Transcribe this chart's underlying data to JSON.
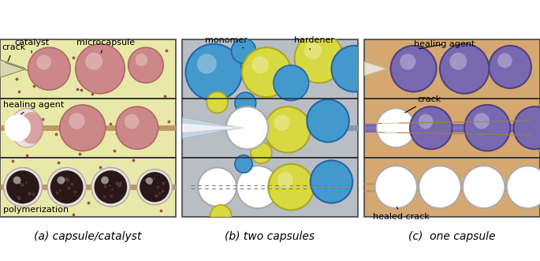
{
  "fig_width": 6.85,
  "fig_height": 3.31,
  "dpi": 100,
  "panel_a": {
    "bg_color": "#e8e8a8",
    "dot_color": "#8b3a3a",
    "microcapsule_color": "#cc8888",
    "microcapsule_edge": "#b06868",
    "microcapsule_highlight": "#ddaaaa",
    "fiber_color": "#c09868",
    "fiber_lw": 5,
    "polymerized_color": "#2a1818",
    "polymerized_edge": "#1a0808",
    "polymerized_spot": "#5a3535",
    "healing_half_color": "#f0e0e0",
    "healing_half_edge": "#ccaaaa",
    "crack_wedge_color": "#d8d8b0",
    "crack_wedge_edge": "#888866",
    "crack_line_color": "#888866",
    "labels": {
      "catalyst": "catalyst",
      "microcapsule": "microcapsule",
      "crack": "crack",
      "healing_agent": "healing agent",
      "polymerization": "polymerization"
    },
    "caption": "(a) capsule/catalyst"
  },
  "panel_b": {
    "bg_color": "#b8bec4",
    "monomer_color": "#4499cc",
    "monomer_edge": "#2266aa",
    "hardener_color": "#d8d840",
    "hardener_edge": "#aaa820",
    "white_color": "#ffffff",
    "white_edge": "#aaaaaa",
    "fiber_color": "#8899aa",
    "fiber_lw": 5,
    "needle_color": "#c8d8e8",
    "needle_edge": "#9aaabb",
    "crack_line_color": "#777777",
    "labels": {
      "monomer": "monomer",
      "hardener": "hardener"
    },
    "caption": "(b) two capsules"
  },
  "panel_c": {
    "bg_color": "#d4a870",
    "capsule_color": "#7868b0",
    "capsule_edge": "#504080",
    "capsule_highlight": "#9888cc",
    "white_color": "#ffffff",
    "white_edge": "#b0a8a8",
    "fiber_color": "#b09060",
    "fiber_lw": 8,
    "crack_line_color": "#a08040",
    "needle_color": "#e8e0d0",
    "needle_edge": "#c0b890",
    "labels": {
      "healing_agent": "healing agent",
      "crack": "crack",
      "healed_crack": "healed crack"
    },
    "caption": "(c)  one capsule"
  },
  "caption_fontsize": 10,
  "label_fontsize": 8,
  "border_color": "#444444",
  "separator_color": "#333333"
}
